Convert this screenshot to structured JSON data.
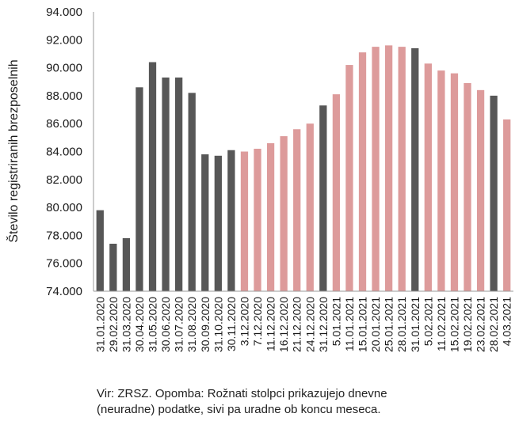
{
  "chart_data": {
    "type": "bar",
    "title": "",
    "xlabel": "",
    "ylabel": "Število registriranih brezposelnih",
    "ylim": [
      74000,
      94000
    ],
    "yticks": [
      "74.000",
      "76.000",
      "78.000",
      "80.000",
      "82.000",
      "84.000",
      "86.000",
      "88.000",
      "90.000",
      "92.000",
      "94.000"
    ],
    "grid": false,
    "colors": {
      "monthly": "#575757",
      "daily": "#dd9b9b"
    },
    "categories": [
      "31.01.2020",
      "29.02.2020",
      "31.03.2020",
      "30.04.2020",
      "31.05.2020",
      "30.06.2020",
      "31.07.2020",
      "31.08.2020",
      "30.09.2020",
      "31.10.2020",
      "30.11.2020",
      "3.12.2020",
      "7.12.2020",
      "11.12.2020",
      "16.12.2020",
      "21.12.2020",
      "24.12.2020",
      "31.12.2020",
      "5.01.2021",
      "11.01.2021",
      "15.01.2021",
      "20.01.2021",
      "25.01.2021",
      "28.01.2021",
      "31.01.2021",
      "5.02.2021",
      "11.02.2021",
      "15.02.2021",
      "19.02.2021",
      "23.02.2021",
      "28.02.2021",
      "4.03.2021"
    ],
    "values": [
      79800,
      77400,
      77800,
      88600,
      90400,
      89300,
      89300,
      88200,
      83800,
      83700,
      84100,
      84000,
      84200,
      84600,
      85100,
      85600,
      86000,
      87300,
      88100,
      90200,
      91100,
      91500,
      91600,
      91500,
      91400,
      90300,
      89800,
      89600,
      88900,
      88400,
      88000,
      86300
    ],
    "kinds": [
      "monthly",
      "monthly",
      "monthly",
      "monthly",
      "monthly",
      "monthly",
      "monthly",
      "monthly",
      "monthly",
      "monthly",
      "monthly",
      "daily",
      "daily",
      "daily",
      "daily",
      "daily",
      "daily",
      "monthly",
      "daily",
      "daily",
      "daily",
      "daily",
      "daily",
      "daily",
      "monthly",
      "daily",
      "daily",
      "daily",
      "daily",
      "daily",
      "monthly",
      "daily"
    ]
  },
  "note": {
    "line1": "Vir: ZRSZ. Opomba: Rožnati stolpci prikazujejo dnevne",
    "line2": "(neuradne) podatke, sivi pa uradne ob koncu meseca."
  }
}
